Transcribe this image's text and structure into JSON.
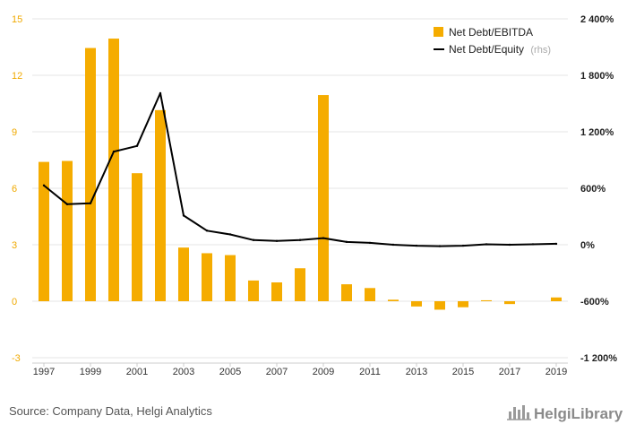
{
  "chart_data": {
    "type": "bar",
    "x": [
      1997,
      1998,
      1999,
      2000,
      2001,
      2002,
      2003,
      2004,
      2005,
      2006,
      2007,
      2008,
      2009,
      2010,
      2011,
      2012,
      2013,
      2014,
      2015,
      2016,
      2017,
      2018,
      2019
    ],
    "x_tick_labels": [
      "1997",
      "1999",
      "2001",
      "2003",
      "2005",
      "2007",
      "2009",
      "2011",
      "2013",
      "2015",
      "2017",
      "2019"
    ],
    "series": [
      {
        "name": "Net Debt/EBITDA",
        "type": "bar",
        "axis": "left",
        "color": "#f5ac00",
        "values": [
          7.4,
          7.45,
          13.45,
          13.95,
          6.8,
          10.15,
          2.85,
          2.55,
          2.45,
          1.1,
          1.0,
          1.75,
          10.95,
          0.9,
          0.7,
          0.08,
          -0.28,
          -0.45,
          -0.32,
          0.05,
          -0.15,
          null,
          0.2
        ]
      },
      {
        "name": "Net Debt/Equity",
        "name_suffix": "(rhs)",
        "type": "line",
        "axis": "right",
        "color": "#000000",
        "values": [
          630,
          430,
          440,
          990,
          1050,
          1610,
          310,
          150,
          110,
          50,
          40,
          50,
          70,
          30,
          20,
          0,
          -10,
          -15,
          -10,
          5,
          0,
          5,
          10
        ]
      }
    ],
    "left_axis": {
      "ylim": [
        -3,
        15
      ],
      "ticks": [
        "15",
        "12",
        "9",
        "6",
        "3",
        "0",
        "-3"
      ],
      "tick_values": [
        15,
        12,
        9,
        6,
        3,
        0,
        -3
      ]
    },
    "right_axis": {
      "ylim": [
        -1200,
        2400
      ],
      "ticks": [
        "2 400%",
        "1 800%",
        "1 200%",
        "600%",
        "0%",
        "-600%",
        "-1 200%"
      ],
      "tick_values": [
        2400,
        1800,
        1200,
        600,
        0,
        -600,
        -1200
      ]
    },
    "grid": true,
    "legend_position": "top-right"
  },
  "source": "Source: Company Data, Helgi Analytics",
  "brand": "HelgiLibrary",
  "colors": {
    "bar": "#f5ac00",
    "line": "#000000",
    "grid": "#e6e6e6",
    "left_tick": "#f0a900"
  }
}
